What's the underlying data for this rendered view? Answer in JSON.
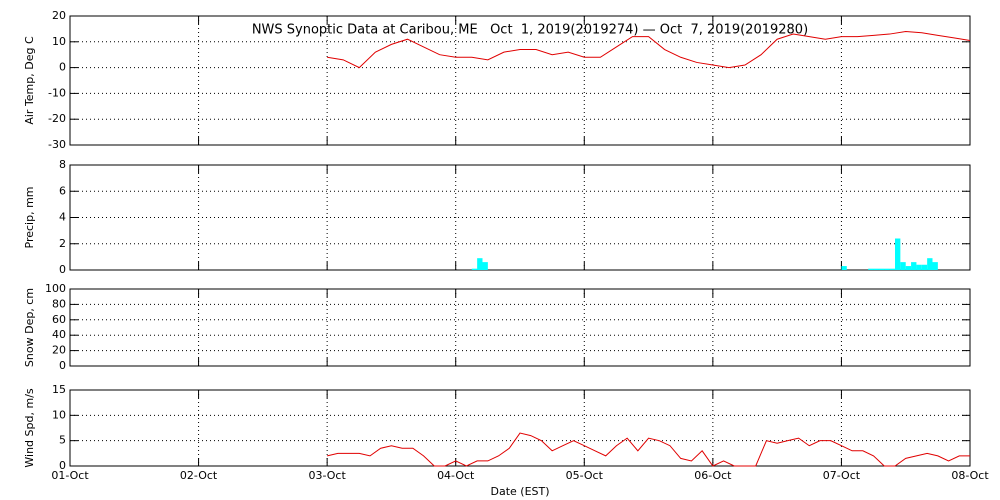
{
  "chart_data": [
    {
      "type": "line",
      "title": "NWS Synoptic Data at Caribou, ME   Oct  1, 2019(2019274) — Oct  7, 2019(2019280)",
      "ylabel": "Air Temp, Deg C",
      "ylim": [
        -30,
        20
      ],
      "yticks": [
        -30,
        -20,
        -10,
        0,
        10,
        20
      ],
      "series": [
        {
          "color": "#e00000",
          "x": [
            48,
            51,
            54,
            57,
            60,
            63,
            66,
            69,
            72,
            75,
            78,
            81,
            84,
            87,
            90,
            93,
            96,
            99,
            102,
            105,
            108,
            111,
            114,
            117,
            120,
            123,
            126,
            129,
            132,
            135,
            138,
            141,
            144,
            147,
            150,
            153,
            156,
            159,
            162,
            165,
            168
          ],
          "values": [
            4,
            3,
            0,
            6,
            9,
            11,
            8,
            5,
            4,
            4,
            3,
            6,
            7,
            7,
            5,
            6,
            4,
            4,
            8,
            12,
            12,
            7,
            4,
            2,
            1,
            0,
            1,
            5,
            11,
            13,
            12,
            11,
            12,
            12,
            12.5,
            13,
            14,
            13.5,
            12.5,
            11.5,
            10.5
          ]
        }
      ]
    },
    {
      "type": "bar",
      "ylabel": "Precip, mm",
      "ylim": [
        0,
        8
      ],
      "yticks": [
        0,
        2,
        4,
        6,
        8
      ],
      "series": [
        {
          "color": "#00ffff",
          "x": [
            75,
            76,
            77,
            144,
            149,
            150,
            151,
            152,
            153,
            154,
            155,
            156,
            157,
            158,
            159,
            160,
            161
          ],
          "values": [
            0.1,
            0.9,
            0.6,
            0.3,
            0.1,
            0.1,
            0.1,
            0.1,
            0.1,
            2.4,
            0.6,
            0.3,
            0.6,
            0.4,
            0.4,
            0.9,
            0.6
          ]
        }
      ]
    },
    {
      "type": "line",
      "ylabel": "Snow Dep, cm",
      "ylim": [
        0,
        100
      ],
      "yticks": [
        0,
        20,
        40,
        60,
        80,
        100
      ],
      "series": []
    },
    {
      "type": "line",
      "ylabel": "Wind Spd, m/s",
      "ylim": [
        0,
        15
      ],
      "yticks": [
        0,
        5,
        10,
        15
      ],
      "xlabel": "Date (EST)",
      "xlim": [
        0,
        168
      ],
      "xticks": [
        {
          "value": 0,
          "label": "01-Oct"
        },
        {
          "value": 24,
          "label": "02-Oct"
        },
        {
          "value": 48,
          "label": "03-Oct"
        },
        {
          "value": 72,
          "label": "04-Oct"
        },
        {
          "value": 96,
          "label": "05-Oct"
        },
        {
          "value": 120,
          "label": "06-Oct"
        },
        {
          "value": 144,
          "label": "07-Oct"
        },
        {
          "value": 168,
          "label": "08-Oct"
        }
      ],
      "series": [
        {
          "color": "#e00000",
          "x": [
            48,
            50,
            52,
            54,
            56,
            58,
            60,
            62,
            64,
            66,
            68,
            70,
            72,
            74,
            76,
            78,
            80,
            82,
            84,
            86,
            88,
            90,
            92,
            94,
            96,
            98,
            100,
            102,
            104,
            106,
            108,
            110,
            112,
            114,
            116,
            118,
            120,
            122,
            124,
            126,
            128,
            130,
            132,
            134,
            136,
            138,
            140,
            142,
            144,
            146,
            148,
            150,
            152,
            154,
            156,
            158,
            160,
            162,
            164,
            166,
            168
          ],
          "values": [
            2,
            2.5,
            2.5,
            2.5,
            2,
            3.5,
            4,
            3.5,
            3.5,
            2,
            0,
            0,
            1,
            0,
            1,
            1,
            2,
            3.5,
            6.5,
            6,
            5,
            3,
            4,
            5,
            4,
            3,
            2,
            4,
            5.5,
            3,
            5.5,
            5,
            4,
            1.5,
            1,
            3,
            0,
            1,
            0,
            0,
            0,
            5,
            4.5,
            5,
            5.5,
            4,
            5,
            5,
            4,
            3,
            3,
            2,
            0,
            0,
            1.5,
            2,
            2.5,
            2,
            1,
            2,
            2
          ]
        }
      ]
    }
  ]
}
